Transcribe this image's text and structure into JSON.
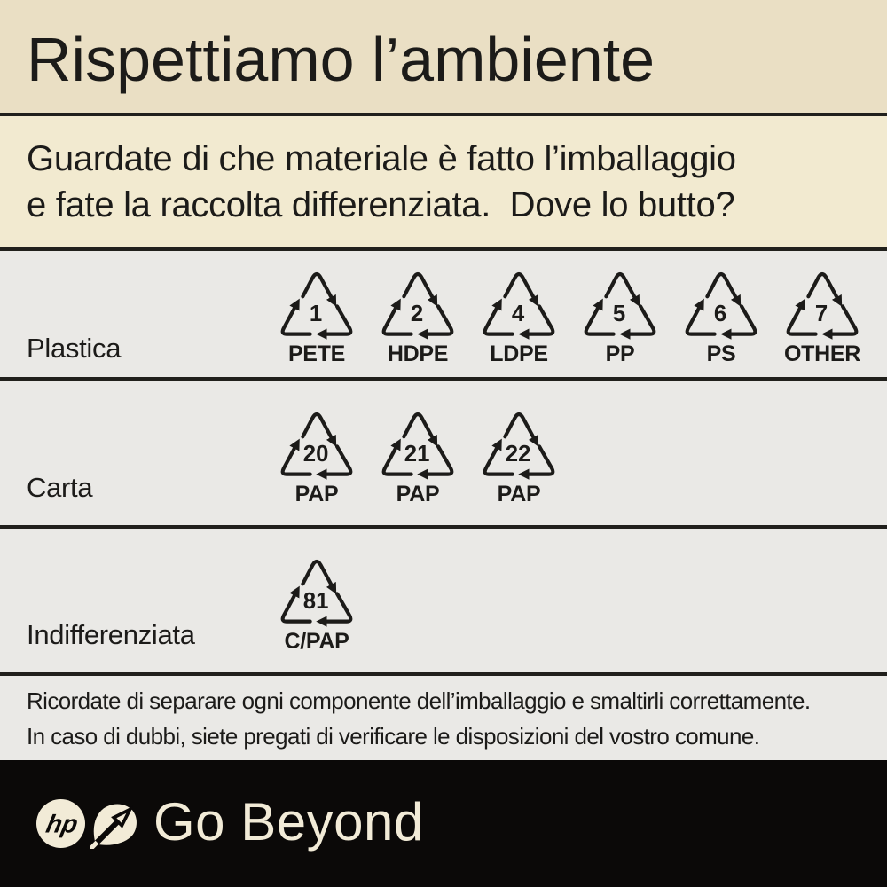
{
  "title": "Rispettiamo l’ambiente",
  "subtitle": {
    "line1": "Guardate di che materiale è fatto l’imballaggio",
    "line2": "e fate la raccolta differenziata.  Dove lo butto?"
  },
  "rows": [
    {
      "label": "Plastica",
      "symbols": [
        {
          "code": "1",
          "material": "PETE"
        },
        {
          "code": "2",
          "material": "HDPE"
        },
        {
          "code": "4",
          "material": "LDPE"
        },
        {
          "code": "5",
          "material": "PP"
        },
        {
          "code": "6",
          "material": "PS"
        },
        {
          "code": "7",
          "material": "OTHER"
        }
      ]
    },
    {
      "label": "Carta",
      "symbols": [
        {
          "code": "20",
          "material": "PAP"
        },
        {
          "code": "21",
          "material": "PAP"
        },
        {
          "code": "22",
          "material": "PAP"
        }
      ]
    },
    {
      "label": "Indifferenziata",
      "symbols": [
        {
          "code": "81",
          "material": "C/PAP"
        }
      ]
    }
  ],
  "note": {
    "line1": "Ricordate di separare ogni componente dell’imballaggio e smaltirli correttamente.",
    "line2": "In caso di dubbi, siete pregati di verificare le disposizioni del vostro comune."
  },
  "footer": {
    "logo": "hp",
    "tagline": "Go Beyond",
    "icons": [
      "hp-logo",
      "go-beyond-arrow-icon"
    ]
  },
  "colors": {
    "beige_dark": "#eadfc4",
    "beige_light": "#f2ead0",
    "gray": "#eae9e6",
    "ink": "#1c1b19",
    "footer_bg": "#0b0908",
    "cream": "#f2ebd7"
  }
}
